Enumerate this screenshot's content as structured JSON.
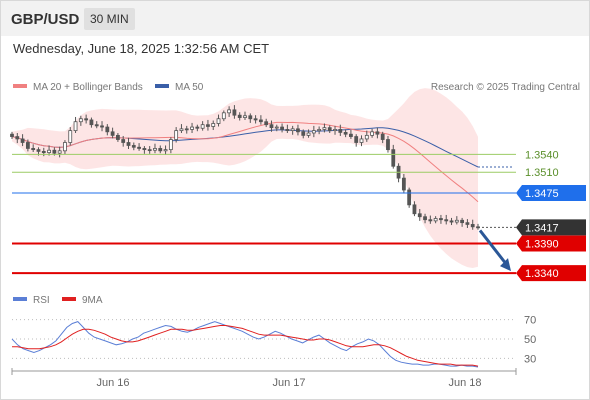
{
  "header": {
    "pair": "GBP/USD",
    "timeframe": "30 MIN",
    "datetime": "Wednesday, June 18, 2025 1:32:56 AM CET"
  },
  "legend": {
    "ma20_label": "MA 20 + Bollinger Bands",
    "ma50_label": "MA 50",
    "credit": "Research © 2025 Trading Central",
    "rsi_label": "RSI",
    "rsi_ma_label": "9MA"
  },
  "colors": {
    "ma20": "#f08080",
    "bollinger_fill": "#fde0e0",
    "ma50": "#3a5fa8",
    "candle": "#555555",
    "support_resistance": "#e00000",
    "pivot": "#1f6feb",
    "target_green": "#9ccc65",
    "arrow": "#2b5797",
    "rsi": "#5b7fd6",
    "rsi_ma": "#e02020",
    "last_price_tag": "#333333"
  },
  "chart_data": [
    {
      "type": "candlestick",
      "title": "",
      "xlabel": "",
      "ylabel": "",
      "x_ticks": [
        "Jun 16",
        "Jun 17",
        "Jun 18"
      ],
      "ylim": [
        1.332,
        1.364
      ],
      "series": [
        {
          "name": "MA 20 + Bollinger Bands",
          "kind": "ma_bollinger"
        },
        {
          "name": "MA 50",
          "kind": "ma"
        }
      ],
      "closes": [
        1.357,
        1.3566,
        1.356,
        1.355,
        1.3548,
        1.3545,
        1.3543,
        1.3547,
        1.3542,
        1.3546,
        1.356,
        1.358,
        1.3595,
        1.36,
        1.3598,
        1.359,
        1.3588,
        1.3586,
        1.3578,
        1.3572,
        1.3565,
        1.356,
        1.3555,
        1.3552,
        1.355,
        1.3548,
        1.3547,
        1.355,
        1.3546,
        1.3548,
        1.3565,
        1.358,
        1.3583,
        1.3582,
        1.3586,
        1.3584,
        1.359,
        1.3587,
        1.3592,
        1.36,
        1.361,
        1.3615,
        1.3606,
        1.3602,
        1.3605,
        1.36,
        1.3598,
        1.3595,
        1.359,
        1.3585,
        1.3586,
        1.3582,
        1.358,
        1.3583,
        1.3578,
        1.3572,
        1.3576,
        1.358,
        1.3582,
        1.3585,
        1.358,
        1.3582,
        1.3577,
        1.3574,
        1.357,
        1.356,
        1.3566,
        1.3572,
        1.3578,
        1.3574,
        1.3565,
        1.3548,
        1.352,
        1.35,
        1.348,
        1.3455,
        1.344,
        1.3435,
        1.343,
        1.3428,
        1.3432,
        1.343,
        1.3428,
        1.3426,
        1.3429,
        1.3425,
        1.3422,
        1.3418,
        1.3417
      ],
      "horizontal_levels": [
        {
          "label": "1.3540",
          "value": 1.354,
          "role": "resistance_green"
        },
        {
          "label": "1.3510",
          "value": 1.351,
          "role": "resistance_green"
        },
        {
          "label": "1.3475",
          "value": 1.3475,
          "role": "pivot"
        },
        {
          "label": "1.3417",
          "value": 1.3417,
          "role": "last_price"
        },
        {
          "label": "1.3390",
          "value": 1.339,
          "role": "support"
        },
        {
          "label": "1.3340",
          "value": 1.334,
          "role": "support"
        }
      ],
      "arrow": {
        "from": 1.3417,
        "to": 1.334,
        "direction": "down"
      }
    },
    {
      "type": "line",
      "title": "",
      "ylim": [
        20,
        80
      ],
      "y_ticks": [
        70,
        50,
        30
      ],
      "series": [
        {
          "name": "RSI",
          "values": [
            50,
            44,
            40,
            38,
            36,
            38,
            41,
            44,
            48,
            55,
            62,
            66,
            68,
            62,
            56,
            52,
            50,
            48,
            46,
            44,
            45,
            47,
            50,
            52,
            56,
            58,
            60,
            62,
            64,
            63,
            60,
            58,
            57,
            59,
            62,
            64,
            66,
            68,
            66,
            64,
            62,
            60,
            58,
            55,
            52,
            50,
            52,
            55,
            58,
            56,
            53,
            50,
            48,
            46,
            49,
            52,
            54,
            50,
            46,
            43,
            40,
            38,
            42,
            45,
            47,
            50,
            48,
            44,
            38,
            32,
            28,
            26,
            25,
            24,
            24,
            23,
            23,
            24,
            24,
            23,
            22,
            22,
            23,
            22,
            22,
            21
          ]
        },
        {
          "name": "9MA",
          "values": [
            42,
            42,
            41,
            40,
            40,
            40,
            41,
            42,
            44,
            47,
            51,
            55,
            58,
            60,
            60,
            59,
            57,
            55,
            52,
            50,
            48,
            47,
            47,
            48,
            50,
            52,
            54,
            56,
            58,
            60,
            60,
            60,
            59,
            59,
            60,
            61,
            62,
            63,
            64,
            64,
            63,
            62,
            61,
            59,
            57,
            55,
            54,
            54,
            54,
            54,
            53,
            52,
            51,
            50,
            49,
            49,
            50,
            50,
            49,
            47,
            45,
            43,
            42,
            42,
            42,
            43,
            44,
            44,
            43,
            41,
            38,
            35,
            32,
            30,
            28,
            27,
            26,
            25,
            24,
            24,
            24,
            23,
            23,
            23,
            23,
            22
          ]
        }
      ]
    }
  ]
}
